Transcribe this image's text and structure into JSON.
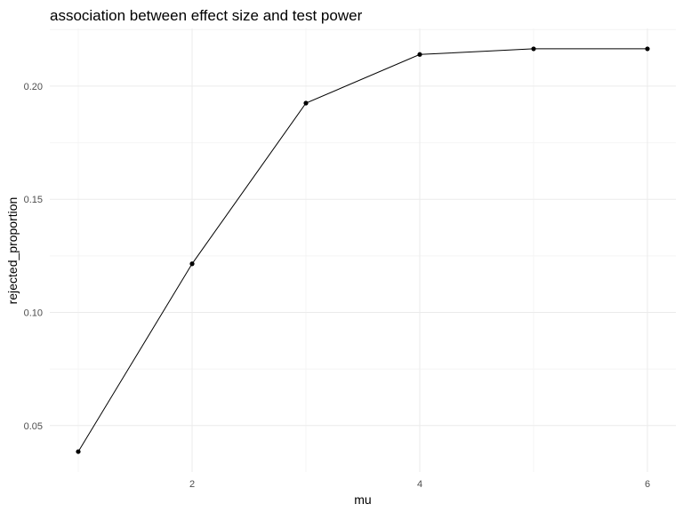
{
  "chart_data": {
    "type": "line",
    "title": "association between effect size and test power",
    "xlabel": "mu",
    "ylabel": "rejected_proportion",
    "x": [
      1,
      2,
      3,
      4,
      5,
      6
    ],
    "y": [
      0.0385,
      0.1215,
      0.1925,
      0.214,
      0.2165,
      0.2165
    ],
    "xlim": [
      0.75,
      6.25
    ],
    "ylim": [
      0.0295,
      0.2255
    ],
    "x_ticks": [
      2,
      4,
      6
    ],
    "x_tick_labels": [
      "2",
      "4",
      "6"
    ],
    "y_ticks": [
      0.05,
      0.1,
      0.15,
      0.2
    ],
    "y_tick_labels": [
      "0.05",
      "0.10",
      "0.15",
      "0.20"
    ],
    "grid": true,
    "legend": "none",
    "colors": {
      "line": "#000000",
      "points": "#000000",
      "grid": "#ebebeb",
      "background": "#ffffff"
    }
  }
}
